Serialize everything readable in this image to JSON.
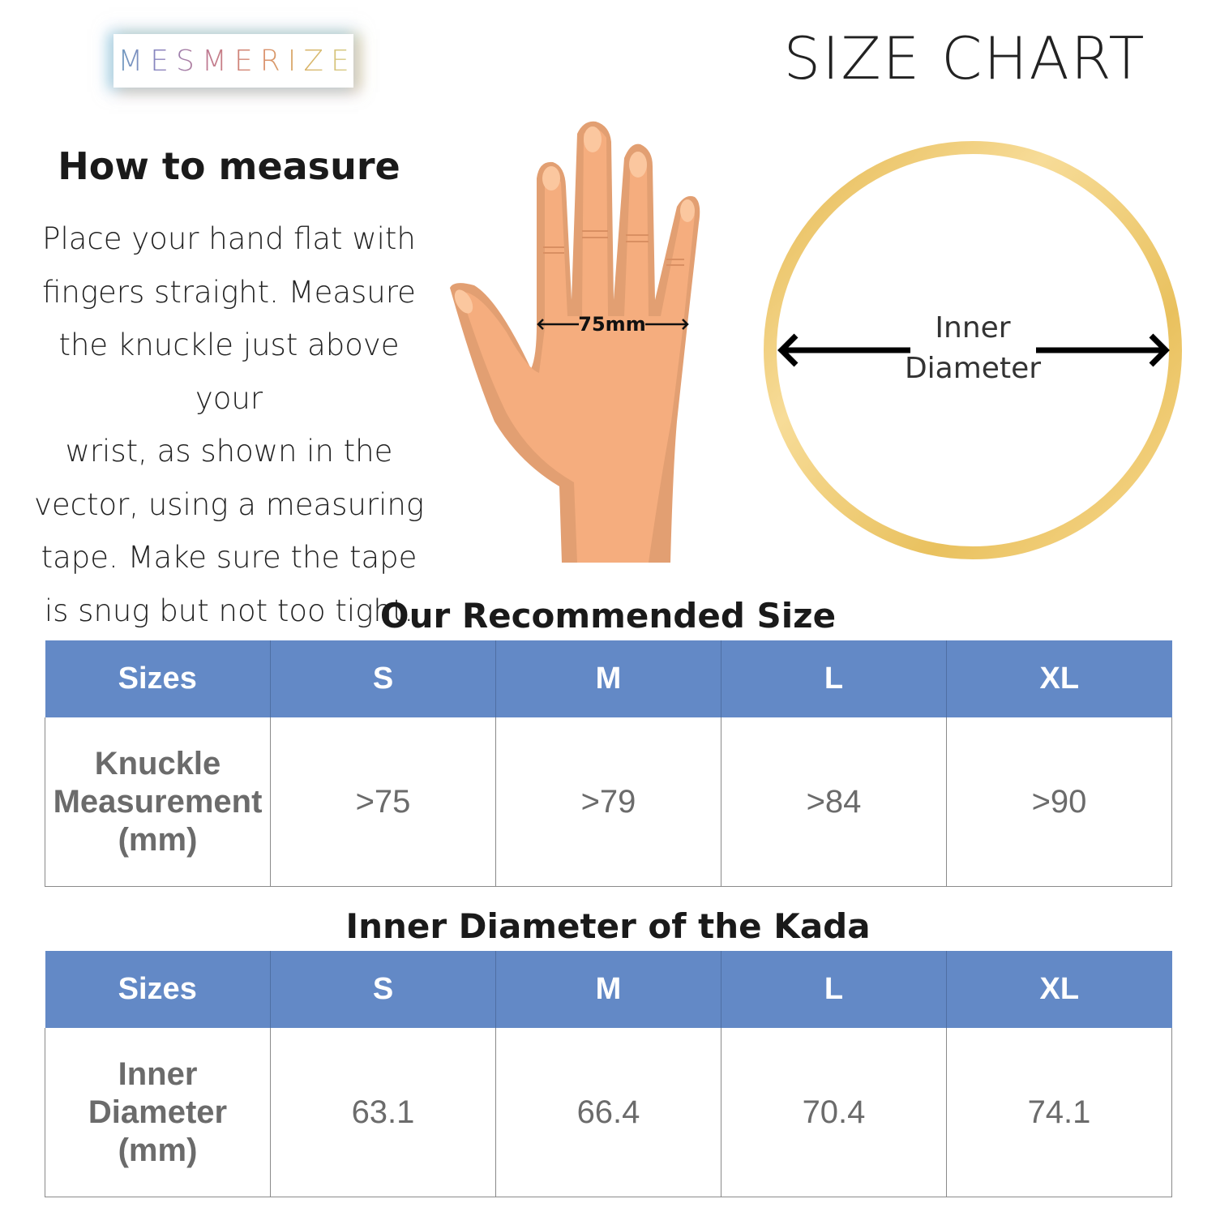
{
  "brand": {
    "logo_text": "MESMERIZE"
  },
  "header": {
    "title": "SIZE CHART"
  },
  "instructions": {
    "heading": "How to measure",
    "lines": [
      "Place your hand flat with",
      "fingers straight. Measure",
      "the knuckle just above your",
      "wrist, as shown in the",
      "vector, using a measuring",
      "tape. Make sure the tape",
      "is snug but not too tight."
    ]
  },
  "hand_diagram": {
    "measurement_label": "75mm"
  },
  "kada_diagram": {
    "label_line1": "Inner",
    "label_line2": "Diameter"
  },
  "knuckle_table": {
    "title": "Our Recommended Size",
    "headers": [
      "Sizes",
      "S",
      "M",
      "L",
      "XL"
    ],
    "row": {
      "label_lines": [
        "Knuckle",
        "Measurement",
        "(mm)"
      ],
      "values": [
        ">75",
        ">79",
        ">84",
        ">90"
      ]
    }
  },
  "diameter_table": {
    "title": "Inner Diameter of the Kada",
    "headers": [
      "Sizes",
      "S",
      "M",
      "L",
      "XL"
    ],
    "row": {
      "label_lines": [
        "Inner",
        "Diameter",
        "(mm)"
      ],
      "values": [
        "63.1",
        "66.4",
        "70.4",
        "74.1"
      ]
    }
  },
  "colors": {
    "header_blue": "#6389c6",
    "skin": "#f5ad7e",
    "gold": "#e8c060"
  }
}
